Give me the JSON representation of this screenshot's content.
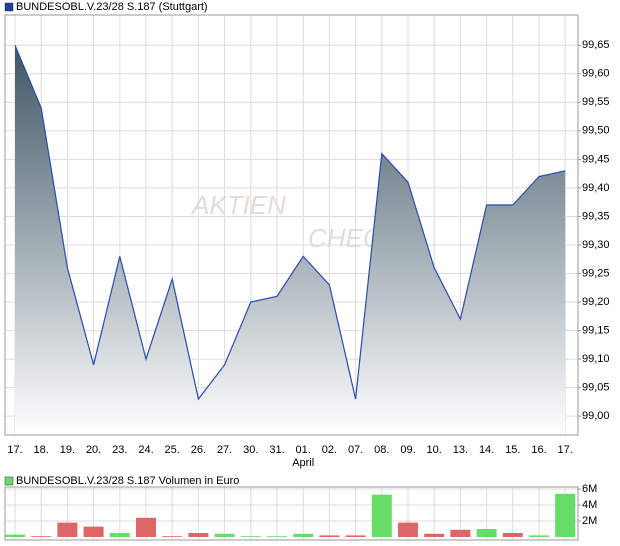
{
  "chart_data": [
    {
      "type": "area",
      "title": "BUNDESOBL.V.23/28 S.187 (Stuttgart)",
      "legend_color": "#1f3f99",
      "watermark": [
        "AKTIEN",
        "CHECK"
      ],
      "categories": [
        "17.",
        "18.",
        "19.",
        "20.",
        "23.",
        "24.",
        "25.",
        "26.",
        "27.",
        "30.",
        "31.",
        "01.",
        "02.",
        "07.",
        "08.",
        "09.",
        "10.",
        "13.",
        "14.",
        "15.",
        "16.",
        "17."
      ],
      "month_label": {
        "index": 11,
        "text": "April"
      },
      "values": [
        99.65,
        99.54,
        99.26,
        99.09,
        99.28,
        99.1,
        99.24,
        99.03,
        99.09,
        99.2,
        99.21,
        99.28,
        99.23,
        99.03,
        99.46,
        99.41,
        99.26,
        99.17,
        99.37,
        99.37,
        99.42,
        99.43
      ],
      "color": "#2a4bb0",
      "ylim": [
        98.967,
        99.703
      ],
      "yticks": [
        {
          "value": 99.0,
          "label": "99,00"
        },
        {
          "value": 99.05,
          "label": "99,05"
        },
        {
          "value": 99.1,
          "label": "99,10"
        },
        {
          "value": 99.15,
          "label": "99,15"
        },
        {
          "value": 99.2,
          "label": "99,20"
        },
        {
          "value": 99.25,
          "label": "99,25"
        },
        {
          "value": 99.3,
          "label": "99,30"
        },
        {
          "value": 99.35,
          "label": "99,35"
        },
        {
          "value": 99.4,
          "label": "99,40"
        },
        {
          "value": 99.45,
          "label": "99,45"
        },
        {
          "value": 99.5,
          "label": "99,50"
        },
        {
          "value": 99.55,
          "label": "99,55"
        },
        {
          "value": 99.6,
          "label": "99,60"
        },
        {
          "value": 99.65,
          "label": "99,65"
        }
      ],
      "grid": true
    },
    {
      "type": "bar",
      "title": "BUNDESOBL.V.23/28 S.187 Volumen in Euro",
      "legend_color": "#66dd66",
      "values": [
        300000,
        100000,
        1800000,
        1300000,
        500000,
        2400000,
        100000,
        500000,
        400000,
        100000,
        100000,
        400000,
        200000,
        200000,
        5300000,
        1800000,
        400000,
        900000,
        1000000,
        500000,
        200000,
        5400000
      ],
      "colors": [
        "#66dd66",
        "#dd6666",
        "#dd6666",
        "#dd6666",
        "#66dd66",
        "#dd6666",
        "#dd6666",
        "#dd6666",
        "#66dd66",
        "#66dd66",
        "#66dd66",
        "#66dd66",
        "#dd6666",
        "#dd6666",
        "#66dd66",
        "#dd6666",
        "#dd6666",
        "#dd6666",
        "#66dd66",
        "#dd6666",
        "#66dd66",
        "#66dd66"
      ],
      "ylim": [
        0,
        6000000
      ],
      "yticks": [
        {
          "value": 2000000,
          "label": "2M"
        },
        {
          "value": 4000000,
          "label": "4M"
        },
        {
          "value": 6000000,
          "label": "6M"
        }
      ],
      "grid": true
    }
  ]
}
